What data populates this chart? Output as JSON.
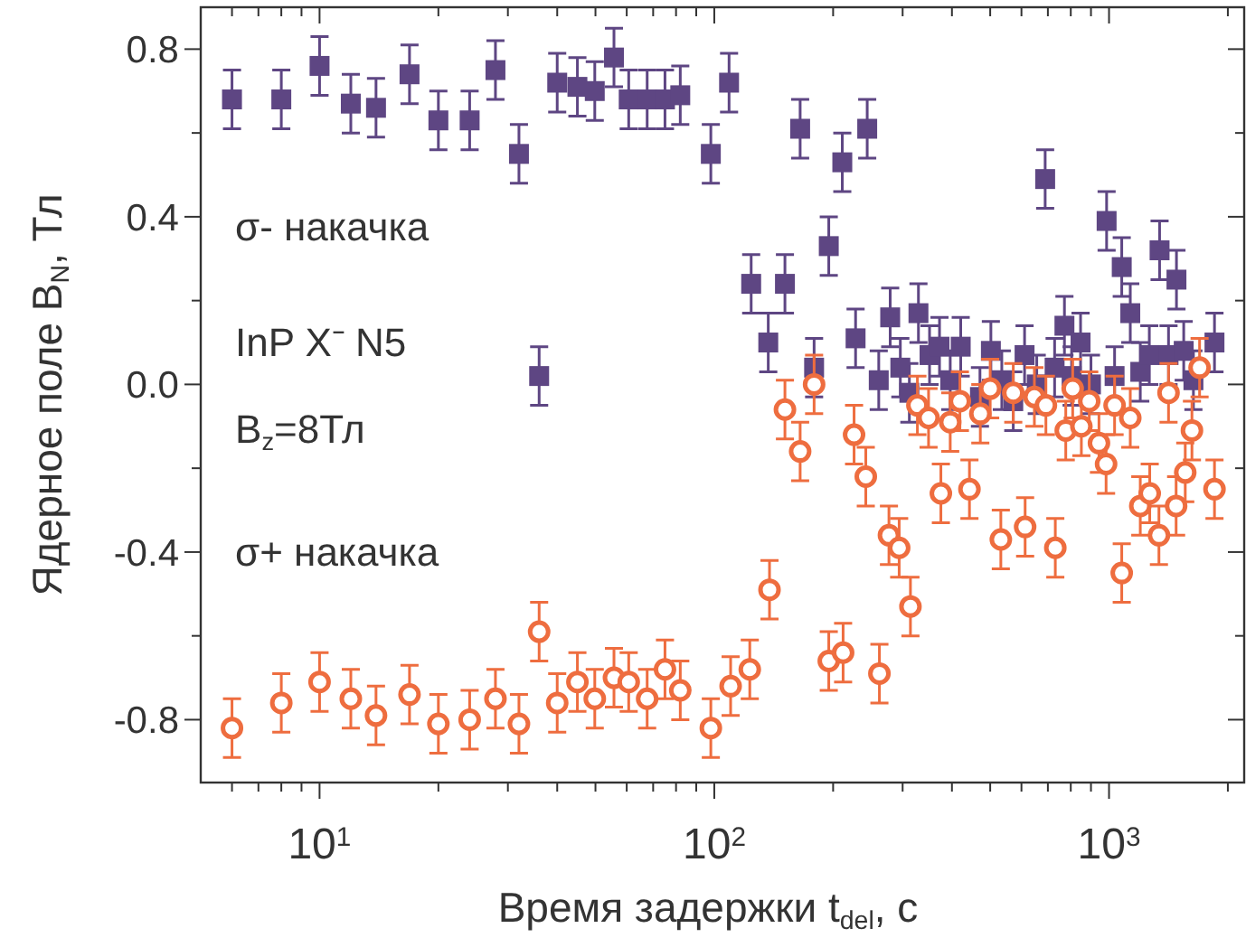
{
  "chart_data": {
    "type": "scatter",
    "xlabel": "Время задержки t$_{del}$, с",
    "ylabel": "Ядерное поле B$_{N}$, Тл",
    "annotations": [
      "σ- накачка",
      "InP X⁻ N5",
      "B$_{z}$=8Тл",
      "σ+ накачка"
    ],
    "log": "x",
    "grid": false,
    "xlim": [
      5,
      2200
    ],
    "ylim": [
      -0.95,
      0.9
    ],
    "xticks": [
      {
        "value": 6,
        "label": null
      },
      {
        "value": 7,
        "label": null
      },
      {
        "value": 8,
        "label": null
      },
      {
        "value": 9,
        "label": null
      },
      {
        "value": 10,
        "label": "10$^{1}$"
      },
      {
        "value": 20,
        "label": null
      },
      {
        "value": 30,
        "label": null
      },
      {
        "value": 40,
        "label": null
      },
      {
        "value": 50,
        "label": null
      },
      {
        "value": 60,
        "label": null
      },
      {
        "value": 70,
        "label": null
      },
      {
        "value": 80,
        "label": null
      },
      {
        "value": 90,
        "label": null
      },
      {
        "value": 100,
        "label": "10$^{2}$"
      },
      {
        "value": 200,
        "label": null
      },
      {
        "value": 300,
        "label": null
      },
      {
        "value": 400,
        "label": null
      },
      {
        "value": 500,
        "label": null
      },
      {
        "value": 600,
        "label": null
      },
      {
        "value": 700,
        "label": null
      },
      {
        "value": 800,
        "label": null
      },
      {
        "value": 900,
        "label": null
      },
      {
        "value": 1000,
        "label": "10$^{3}$"
      },
      {
        "value": 2000,
        "label": null
      }
    ],
    "yticks": [
      -0.8,
      {
        "value": -0.6,
        "label": null
      },
      -0.4,
      {
        "value": -0.2,
        "label": null
      },
      {
        "value": 0,
        "label": "0.0"
      },
      {
        "value": 0.2,
        "label": null
      },
      0.4,
      {
        "value": 0.6,
        "label": null
      },
      0.8
    ],
    "series": [
      {
        "color": "#5e4683",
        "marker": "square",
        "x": [
          6,
          8,
          10,
          12,
          13.9,
          16.9,
          20,
          24,
          27.9,
          32,
          36,
          40,
          45,
          49.8,
          55.7,
          60.7,
          67.6,
          75,
          82,
          98,
          109,
          124,
          137,
          151,
          165,
          179,
          195,
          211,
          228,
          244,
          261,
          279,
          296,
          312,
          329,
          351,
          372,
          396,
          421,
          471,
          502,
          535,
          572,
          611,
          656,
          689,
          728,
          771,
          804,
          847,
          900,
          986,
          1033,
          1077,
          1132,
          1200,
          1265,
          1343,
          1415,
          1482,
          1546,
          1636,
          1850
        ],
        "values": [
          0.68,
          0.68,
          0.76,
          0.67,
          0.66,
          0.74,
          0.63,
          0.63,
          0.75,
          0.55,
          0.02,
          0.72,
          0.71,
          0.7,
          0.78,
          0.68,
          0.68,
          0.68,
          0.69,
          0.55,
          0.72,
          0.24,
          0.1,
          0.24,
          0.61,
          0.04,
          0.33,
          0.53,
          0.11,
          0.61,
          0.01,
          0.16,
          0.04,
          -0.02,
          0.17,
          0.07,
          0.09,
          0.01,
          0.09,
          -0.03,
          0.08,
          0.01,
          -0.04,
          0.07,
          0,
          0.49,
          0.04,
          0.14,
          0.02,
          0.1,
          0,
          0.39,
          0.02,
          0.28,
          0.17,
          0.03,
          0.07,
          0.32,
          0.07,
          0.25,
          0.08,
          0.01,
          0.1
        ],
        "errors": [
          0.07,
          0.07,
          0.07,
          0.07,
          0.07,
          0.07,
          0.07,
          0.07,
          0.07,
          0.07,
          0.07,
          0.07,
          0.07,
          0.07,
          0.07,
          0.07,
          0.07,
          0.07,
          0.07,
          0.07,
          0.07,
          0.07,
          0.07,
          0.07,
          0.07,
          0.07,
          0.07,
          0.07,
          0.07,
          0.07,
          0.07,
          0.07,
          0.07,
          0.07,
          0.07,
          0.07,
          0.07,
          0.07,
          0.07,
          0.07,
          0.07,
          0.07,
          0.07,
          0.07,
          0.07,
          0.07,
          0.07,
          0.07,
          0.07,
          0.07,
          0.07,
          0.07,
          0.07,
          0.07,
          0.07,
          0.07,
          0.07,
          0.07,
          0.07,
          0.07,
          0.07,
          0.07,
          0.07
        ]
      },
      {
        "color": "#ee6d3f",
        "marker": "circle",
        "x": [
          6,
          8,
          10,
          12,
          13.9,
          16.9,
          20,
          24,
          27.9,
          32,
          36,
          40,
          45,
          49.8,
          55.7,
          60.7,
          67.6,
          75,
          82,
          98,
          110,
          123,
          138,
          151,
          165,
          179,
          195,
          212,
          226,
          242,
          262,
          277,
          294,
          314,
          327,
          349,
          375,
          396,
          419,
          443,
          472,
          500,
          532,
          572,
          613,
          647,
          692,
          731,
          777,
          809,
          851,
          891,
          943,
          983,
          1033,
          1077,
          1132,
          1200,
          1268,
          1338,
          1415,
          1479,
          1560,
          1622,
          1696,
          1850
        ],
        "values": [
          -0.82,
          -0.76,
          -0.71,
          -0.75,
          -0.79,
          -0.74,
          -0.81,
          -0.8,
          -0.75,
          -0.81,
          -0.59,
          -0.76,
          -0.71,
          -0.75,
          -0.7,
          -0.71,
          -0.75,
          -0.68,
          -0.73,
          -0.82,
          -0.72,
          -0.68,
          -0.49,
          -0.06,
          -0.16,
          0,
          -0.66,
          -0.64,
          -0.12,
          -0.22,
          -0.69,
          -0.36,
          -0.39,
          -0.53,
          -0.05,
          -0.08,
          -0.26,
          -0.09,
          -0.04,
          -0.25,
          -0.07,
          -0.01,
          -0.37,
          -0.02,
          -0.34,
          -0.03,
          -0.05,
          -0.39,
          -0.11,
          -0.01,
          -0.1,
          -0.04,
          -0.14,
          -0.19,
          -0.05,
          -0.45,
          -0.08,
          -0.29,
          -0.26,
          -0.36,
          -0.02,
          -0.29,
          -0.21,
          -0.11,
          0.04,
          -0.25
        ],
        "errors": [
          0.07,
          0.07,
          0.07,
          0.07,
          0.07,
          0.07,
          0.07,
          0.07,
          0.07,
          0.07,
          0.07,
          0.07,
          0.07,
          0.07,
          0.07,
          0.07,
          0.07,
          0.07,
          0.07,
          0.07,
          0.07,
          0.07,
          0.07,
          0.07,
          0.07,
          0.07,
          0.07,
          0.07,
          0.07,
          0.07,
          0.07,
          0.07,
          0.07,
          0.07,
          0.07,
          0.07,
          0.07,
          0.07,
          0.07,
          0.07,
          0.07,
          0.07,
          0.07,
          0.07,
          0.07,
          0.07,
          0.07,
          0.07,
          0.07,
          0.07,
          0.07,
          0.07,
          0.07,
          0.07,
          0.07,
          0.07,
          0.07,
          0.07,
          0.07,
          0.07,
          0.07,
          0.07,
          0.07,
          0.07,
          0.07,
          0.07
        ]
      }
    ]
  }
}
